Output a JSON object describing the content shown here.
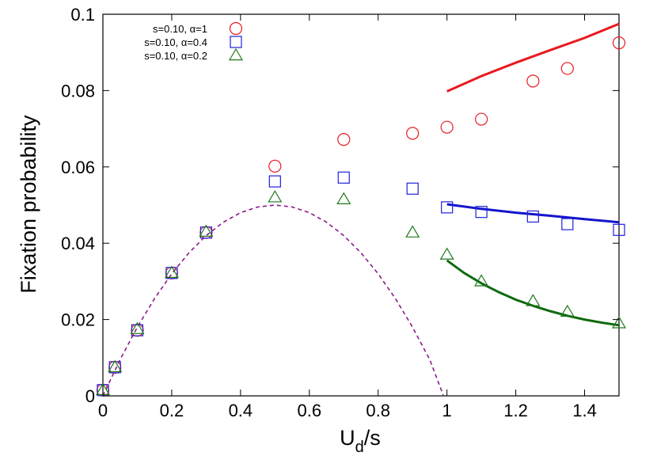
{
  "chart_data": {
    "type": "scatter",
    "xlabel": "U",
    "xlabel_sub": "d",
    "xlabel_suffix": "/s",
    "ylabel": "Fixation probability",
    "xlim": [
      0,
      1.5
    ],
    "ylim": [
      0,
      0.1
    ],
    "xticks": [
      0,
      0.2,
      0.4,
      0.6,
      0.8,
      1,
      1.2,
      1.4
    ],
    "xtick_labels": [
      "0",
      "0.2",
      "0.4",
      "0.6",
      "0.8",
      "1",
      "1.2",
      "1.4"
    ],
    "yticks": [
      0,
      0.02,
      0.04,
      0.06,
      0.08,
      0.1
    ],
    "ytick_labels": [
      "0",
      "0.02",
      "0.04",
      "0.06",
      "0.08",
      "0.1"
    ],
    "grid": false,
    "legend_position": "top-left",
    "series": [
      {
        "name": "s=0.10, α=1",
        "marker": "circle",
        "color": "#e8191f",
        "x": [
          0,
          0.035,
          0.1,
          0.2,
          0.3,
          0.5,
          0.7,
          0.9,
          1.0,
          1.1,
          1.25,
          1.35,
          1.5
        ],
        "y": [
          0.0015,
          0.0075,
          0.0172,
          0.0322,
          0.0428,
          0.0602,
          0.0672,
          0.0688,
          0.0704,
          0.0725,
          0.0825,
          0.0858,
          0.0925
        ]
      },
      {
        "name": "s=0.10, α=0.4",
        "marker": "square",
        "color": "#2020dd",
        "x": [
          0,
          0.035,
          0.1,
          0.2,
          0.3,
          0.5,
          0.7,
          0.9,
          1.0,
          1.1,
          1.25,
          1.35,
          1.5
        ],
        "y": [
          0.0015,
          0.0075,
          0.0172,
          0.0322,
          0.0428,
          0.0562,
          0.0572,
          0.0543,
          0.0494,
          0.0482,
          0.047,
          0.045,
          0.0435
        ]
      },
      {
        "name": "s=0.10, α=0.2",
        "marker": "triangle",
        "color": "#1e7a1e",
        "x": [
          0,
          0.035,
          0.1,
          0.2,
          0.3,
          0.5,
          0.7,
          0.9,
          1.0,
          1.1,
          1.25,
          1.35,
          1.5
        ],
        "y": [
          0.0015,
          0.0075,
          0.0175,
          0.0322,
          0.043,
          0.052,
          0.0515,
          0.0428,
          0.037,
          0.03,
          0.0248,
          0.022,
          0.019
        ]
      }
    ],
    "curves": [
      {
        "style": "dashed",
        "color": "#8b1a8b",
        "x": [
          0,
          0.05,
          0.1,
          0.15,
          0.2,
          0.25,
          0.3,
          0.35,
          0.4,
          0.45,
          0.5,
          0.55,
          0.6,
          0.65,
          0.7,
          0.75,
          0.8,
          0.85,
          0.9,
          0.95,
          0.99
        ],
        "y": [
          0.0,
          0.0095,
          0.018,
          0.0255,
          0.032,
          0.0375,
          0.042,
          0.0455,
          0.048,
          0.0495,
          0.05,
          0.0495,
          0.048,
          0.0455,
          0.042,
          0.0375,
          0.032,
          0.0255,
          0.018,
          0.0095,
          0.0
        ]
      },
      {
        "style": "solid",
        "color": "#e8191f",
        "x": [
          1.0,
          1.1,
          1.2,
          1.3,
          1.4,
          1.5
        ],
        "y": [
          0.0798,
          0.0838,
          0.0873,
          0.0906,
          0.0938,
          0.0975
        ]
      },
      {
        "style": "solid",
        "color": "#1414cc",
        "x": [
          1.0,
          1.1,
          1.2,
          1.3,
          1.4,
          1.5
        ],
        "y": [
          0.0502,
          0.049,
          0.048,
          0.0472,
          0.0463,
          0.0455
        ]
      },
      {
        "style": "solid",
        "color": "#0f6a0f",
        "x": [
          1.0,
          1.05,
          1.1,
          1.15,
          1.2,
          1.25,
          1.3,
          1.35,
          1.4,
          1.45,
          1.5
        ],
        "y": [
          0.0355,
          0.0322,
          0.0295,
          0.0272,
          0.0252,
          0.0236,
          0.0222,
          0.021,
          0.02,
          0.0192,
          0.0185
        ]
      }
    ]
  }
}
